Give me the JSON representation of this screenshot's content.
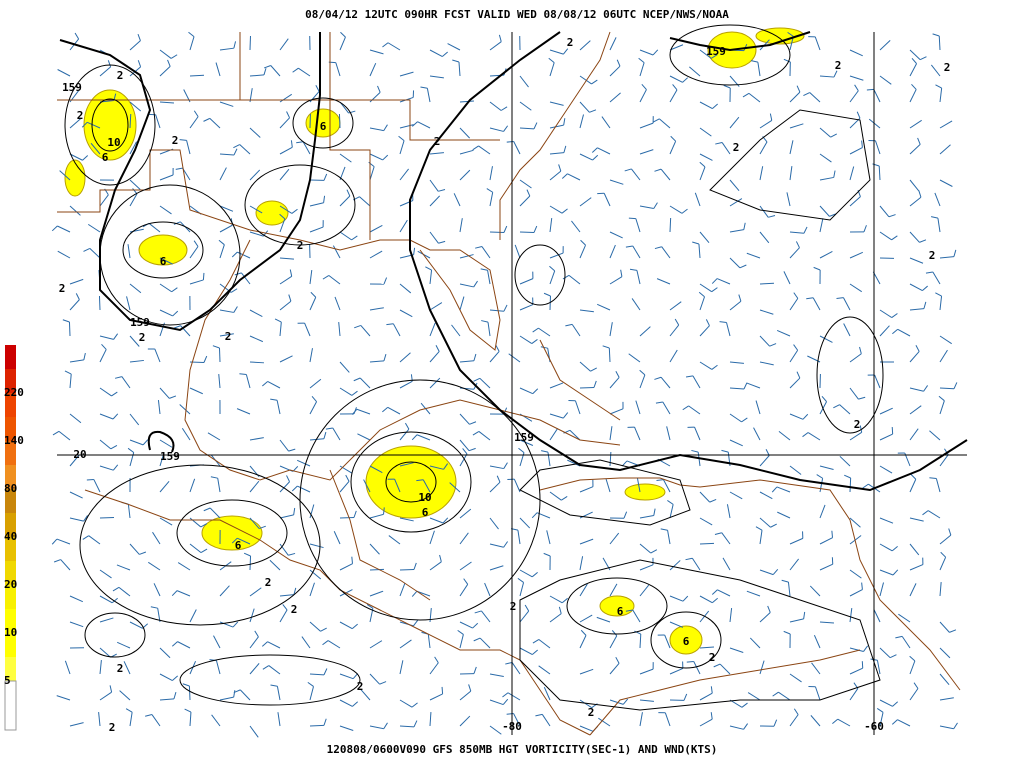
{
  "header": "08/04/12 12UTC  090HR  FCST VALID WED 08/08/12 06UTC  NCEP/NWS/NOAA",
  "footer": "120808/0600V090 GFS 850MB HGT VORTICITY(SEC-1) AND WND(KTS)",
  "colorbar": {
    "labels": [
      "220",
      "140",
      "80",
      "40",
      "20",
      "10",
      "5"
    ]
  },
  "grid_labels": {
    "lat": [
      "20"
    ],
    "lon": [
      "-80",
      "-60"
    ]
  },
  "contour_labels": [
    "159",
    "2",
    "2",
    "10",
    "6",
    "2",
    "6",
    "6",
    "2",
    "159",
    "2",
    "2",
    "2",
    "2",
    "2",
    "159",
    "2",
    "2",
    "2",
    "2",
    "2",
    "159",
    "159",
    "10",
    "6",
    "6",
    "2",
    "2",
    "2",
    "2",
    "2",
    "2",
    "6",
    "6",
    "2",
    "2"
  ]
}
